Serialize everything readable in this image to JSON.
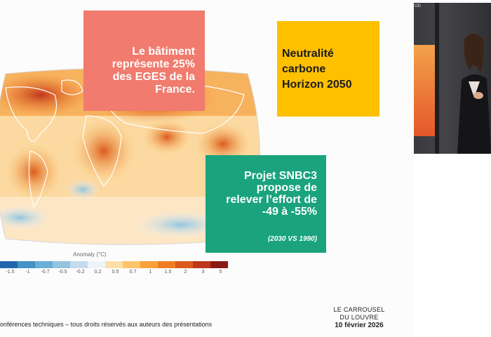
{
  "slide": {
    "box_red_text": "Le bâtiment\nreprésente 25%\ndes EGES de la\nFrance.",
    "box_yellow_text": "Neutralité\ncarbone\nHorizon 2050",
    "box_green_text": "Projet SNBC3\npropose de\nrelever l’effort de\n-49 à -55%",
    "box_green_sub": "(2030 VS 1990)",
    "map_legend_title": "Anomaly (°C)",
    "map_legend_ticks": [
      "-1.5",
      "-1",
      "-0.7",
      "-0.5",
      "-0.2",
      "0.2",
      "0.5",
      "0.7",
      "1",
      "1.5",
      "2",
      "3",
      "5"
    ],
    "map_legend_colors": [
      "#2166ac",
      "#4393c3",
      "#6baed6",
      "#92c5de",
      "#c6dbef",
      "#eef3f8",
      "#fde0a8",
      "#fdc46a",
      "#f9a23a",
      "#f07d26",
      "#dc5a1d",
      "#c0361d",
      "#8b1a14"
    ],
    "footer_text": "onférences techniques – tous droits réservés aux auteurs des présentations",
    "brand_line1": "LE CARROUSEL",
    "brand_line2": "DU LOUVRE",
    "brand_date": "10 février 2026"
  },
  "video": {
    "corner_text": "OD"
  }
}
